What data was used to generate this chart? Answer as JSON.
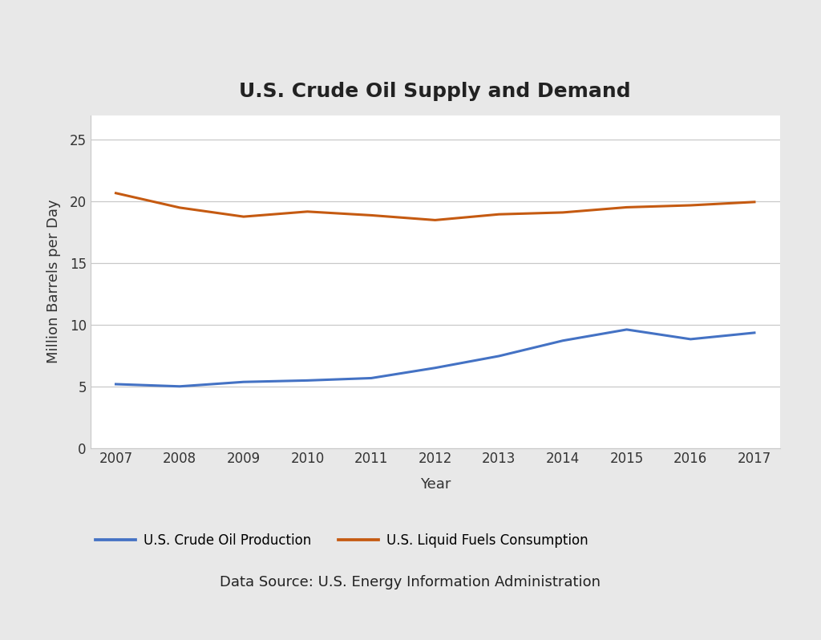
{
  "title": "U.S. Crude Oil Supply and Demand",
  "xlabel": "Year",
  "ylabel": "Million Barrels per Day",
  "footnote": "Data Source: U.S. Energy Information Administration",
  "years": [
    2007,
    2008,
    2009,
    2010,
    2011,
    2012,
    2013,
    2014,
    2015,
    2016,
    2017
  ],
  "production": [
    5.18,
    5.0,
    5.36,
    5.48,
    5.67,
    6.5,
    7.46,
    8.71,
    9.61,
    8.83,
    9.35
  ],
  "consumption": [
    20.68,
    19.5,
    18.77,
    19.18,
    18.88,
    18.49,
    18.96,
    19.11,
    19.53,
    19.69,
    19.96
  ],
  "production_color": "#4472c4",
  "consumption_color": "#c55a11",
  "production_label": "U.S. Crude Oil Production",
  "consumption_label": "U.S. Liquid Fuels Consumption",
  "ylim": [
    0,
    27
  ],
  "yticks": [
    0,
    5,
    10,
    15,
    20,
    25
  ],
  "outer_bg_color": "#e8e8e8",
  "inner_bg_color": "#ffffff",
  "grid_color": "#c8c8c8",
  "title_fontsize": 18,
  "label_fontsize": 13,
  "tick_fontsize": 12,
  "legend_fontsize": 12,
  "footnote_fontsize": 13,
  "line_width": 2.2,
  "top_bar_color": "#c00000",
  "top_bar_height": 0.018
}
